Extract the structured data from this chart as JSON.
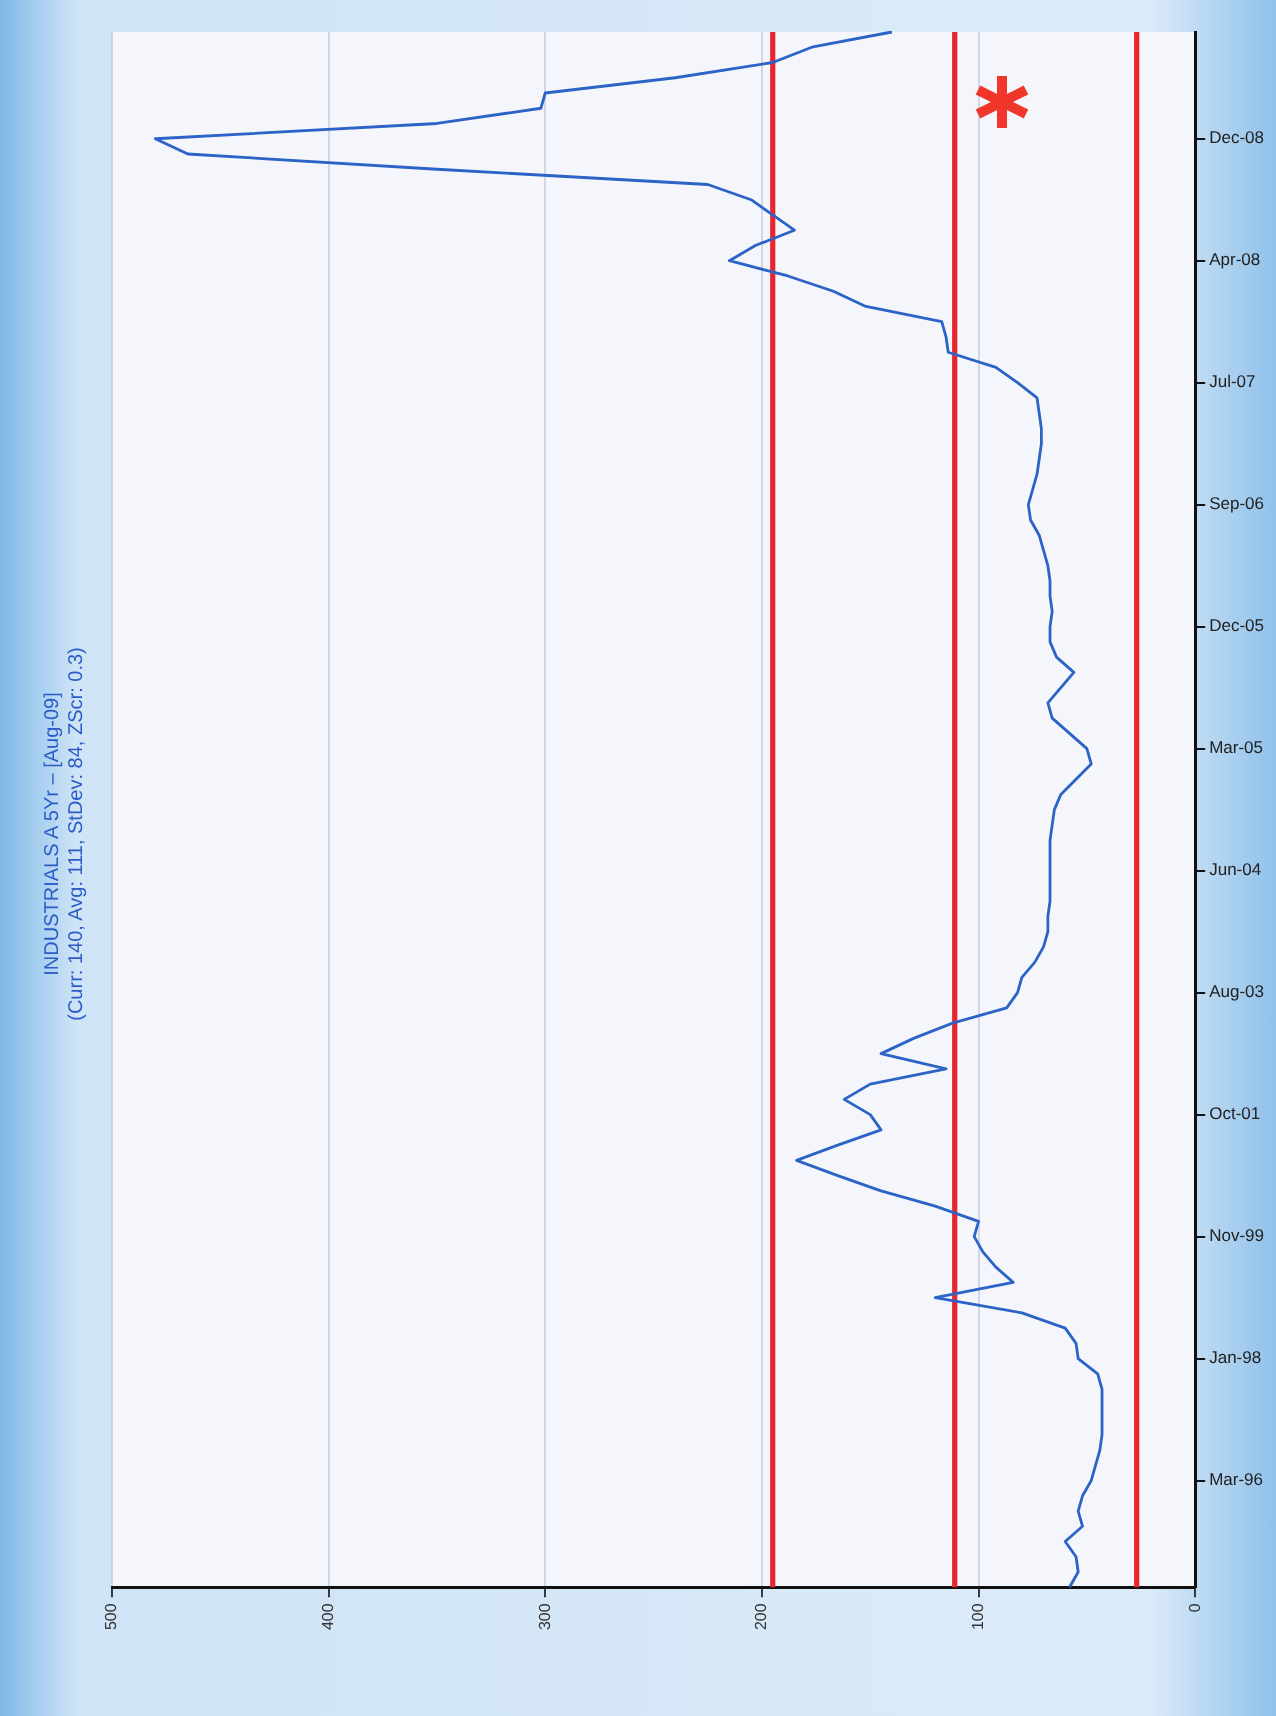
{
  "chart_data": {
    "type": "line",
    "orientation": "horizontal",
    "title": "INDUSTRIALS A 5Yr – [Aug-09]",
    "subtitle": "(Curr: 140, Avg: 111, StDev: 84, ZScr: 0.3)",
    "categories": [
      null,
      null,
      null,
      null,
      null,
      null,
      null,
      "Dec-08",
      null,
      null,
      null,
      null,
      null,
      null,
      null,
      "Apr-08",
      null,
      null,
      null,
      null,
      null,
      null,
      null,
      "Jul-07",
      null,
      null,
      null,
      null,
      null,
      null,
      null,
      "Sep-06",
      null,
      null,
      null,
      null,
      null,
      null,
      null,
      "Dec-05",
      null,
      null,
      null,
      null,
      null,
      null,
      null,
      "Mar-05",
      null,
      null,
      null,
      null,
      null,
      null,
      null,
      "Jun-04",
      null,
      null,
      null,
      null,
      null,
      null,
      null,
      "Aug-03",
      null,
      null,
      null,
      null,
      null,
      null,
      null,
      "Oct-01",
      null,
      null,
      null,
      null,
      null,
      null,
      null,
      "Nov-99",
      null,
      null,
      null,
      null,
      null,
      null,
      null,
      "Jan-98",
      null,
      null,
      null,
      null,
      null,
      null,
      null,
      "Mar-96",
      null,
      null,
      null,
      null,
      null,
      null,
      null
    ],
    "series": [
      {
        "color": "#2b63c6",
        "values": [
          140,
          177,
          195,
          240,
          300,
          302,
          350,
          480,
          465,
          350,
          225,
          205,
          195,
          185,
          203,
          215,
          188,
          167,
          152,
          117,
          115,
          114,
          92,
          82,
          73,
          72,
          71,
          71,
          72,
          73,
          75,
          77,
          76,
          72,
          70,
          68,
          67,
          67,
          66,
          67,
          67,
          64,
          56,
          62,
          68,
          66,
          58,
          50,
          48,
          55,
          62,
          65,
          66,
          67,
          67,
          67,
          67,
          67,
          68,
          68,
          70,
          74,
          80,
          82,
          87,
          112,
          130,
          145,
          115,
          150,
          162,
          150,
          145,
          165,
          184,
          165,
          145,
          120,
          100,
          102,
          98,
          92,
          84,
          120,
          80,
          60,
          55,
          54,
          45,
          43,
          43,
          43,
          43,
          44,
          46,
          48,
          52,
          54,
          52,
          60,
          55,
          54,
          58
        ]
      }
    ],
    "xlim": [
      500,
      0
    ],
    "xticks": [
      0,
      100,
      200,
      300,
      400,
      500
    ],
    "grid": "x",
    "marker": "none",
    "line_style": "solid",
    "ref_lines": [
      {
        "axis": "x",
        "value": 195,
        "color": "#e8262b"
      },
      {
        "axis": "x",
        "value": 111,
        "color": "#e8262b"
      },
      {
        "axis": "x",
        "value": 27,
        "color": "#e8262b"
      }
    ]
  }
}
